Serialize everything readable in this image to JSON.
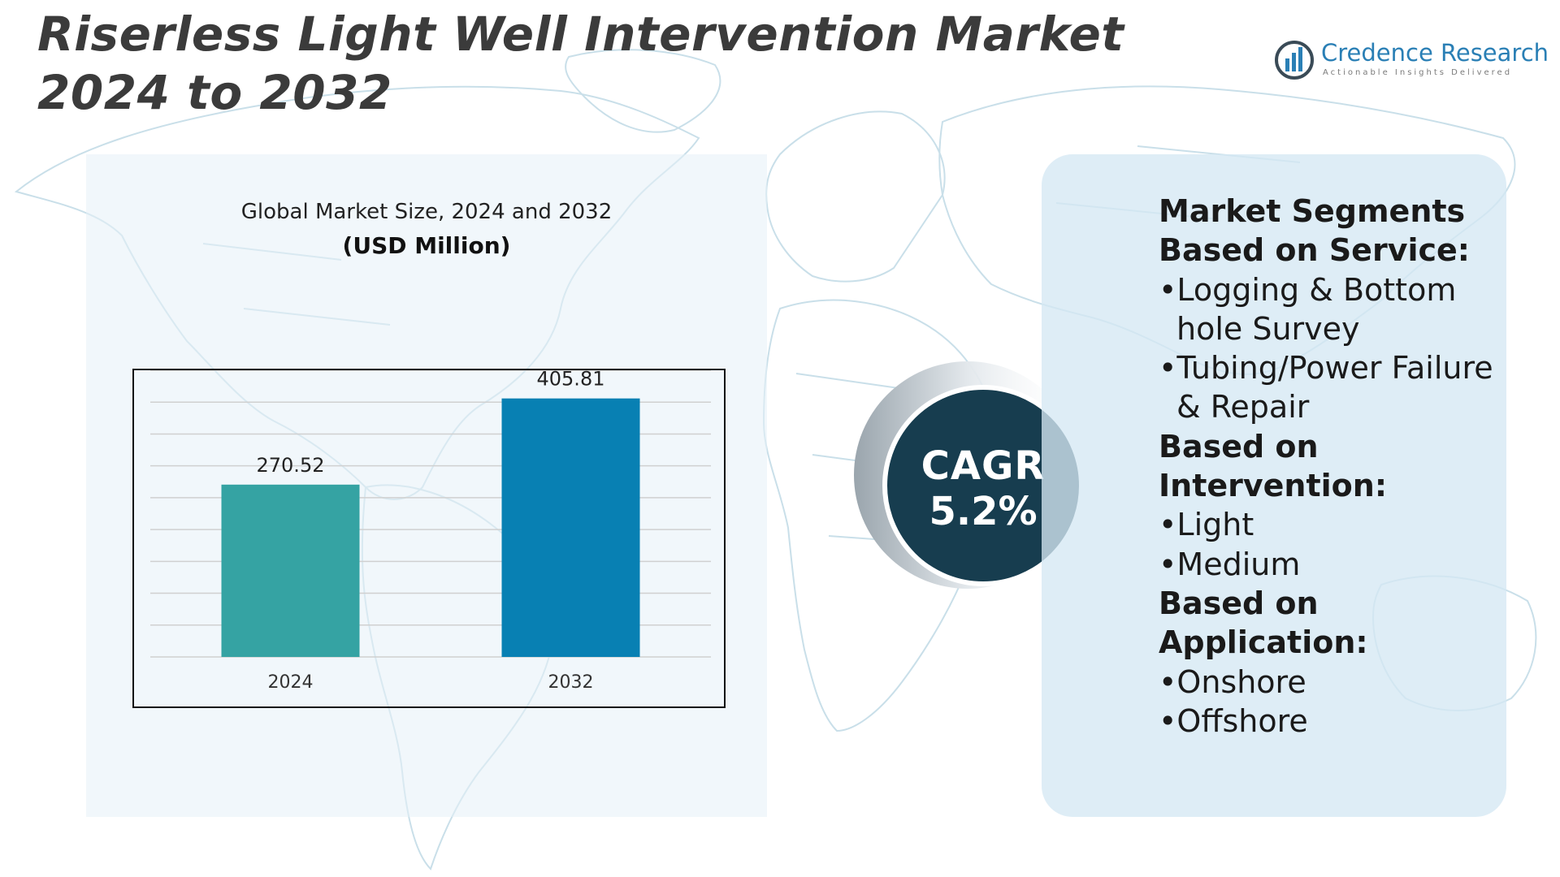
{
  "title": "Riserless Light Well Intervention Market 2024 to 2032",
  "brand": {
    "name": "Credence Research",
    "tagline": "Actionable Insights Delivered",
    "color": "#2a7fb5"
  },
  "chart_data": {
    "type": "bar",
    "title": "Global Market Size, 2024 and 2032",
    "subtitle": "(USD Million)",
    "categories": [
      "2024",
      "2032"
    ],
    "values": [
      270.52,
      405.81
    ],
    "value_labels": [
      "270.52",
      "405.81"
    ],
    "colors": [
      "#35a3a3",
      "#0880b3"
    ],
    "ylim": [
      0,
      450
    ],
    "grid": true,
    "legend": "none"
  },
  "cagr": {
    "label": "CAGR",
    "value": "5.2%",
    "color": "#173d4f"
  },
  "segments": {
    "heading": "Market Segments",
    "groups": [
      {
        "title": "Based on Service:",
        "items": [
          "Logging & Bottom hole Survey",
          "Tubing/Power Failure & Repair"
        ]
      },
      {
        "title": "Based on Intervention:",
        "items": [
          "Light",
          "Medium"
        ]
      },
      {
        "title": "Based on Application:",
        "items": [
          "Onshore",
          "Offshore"
        ]
      }
    ]
  }
}
